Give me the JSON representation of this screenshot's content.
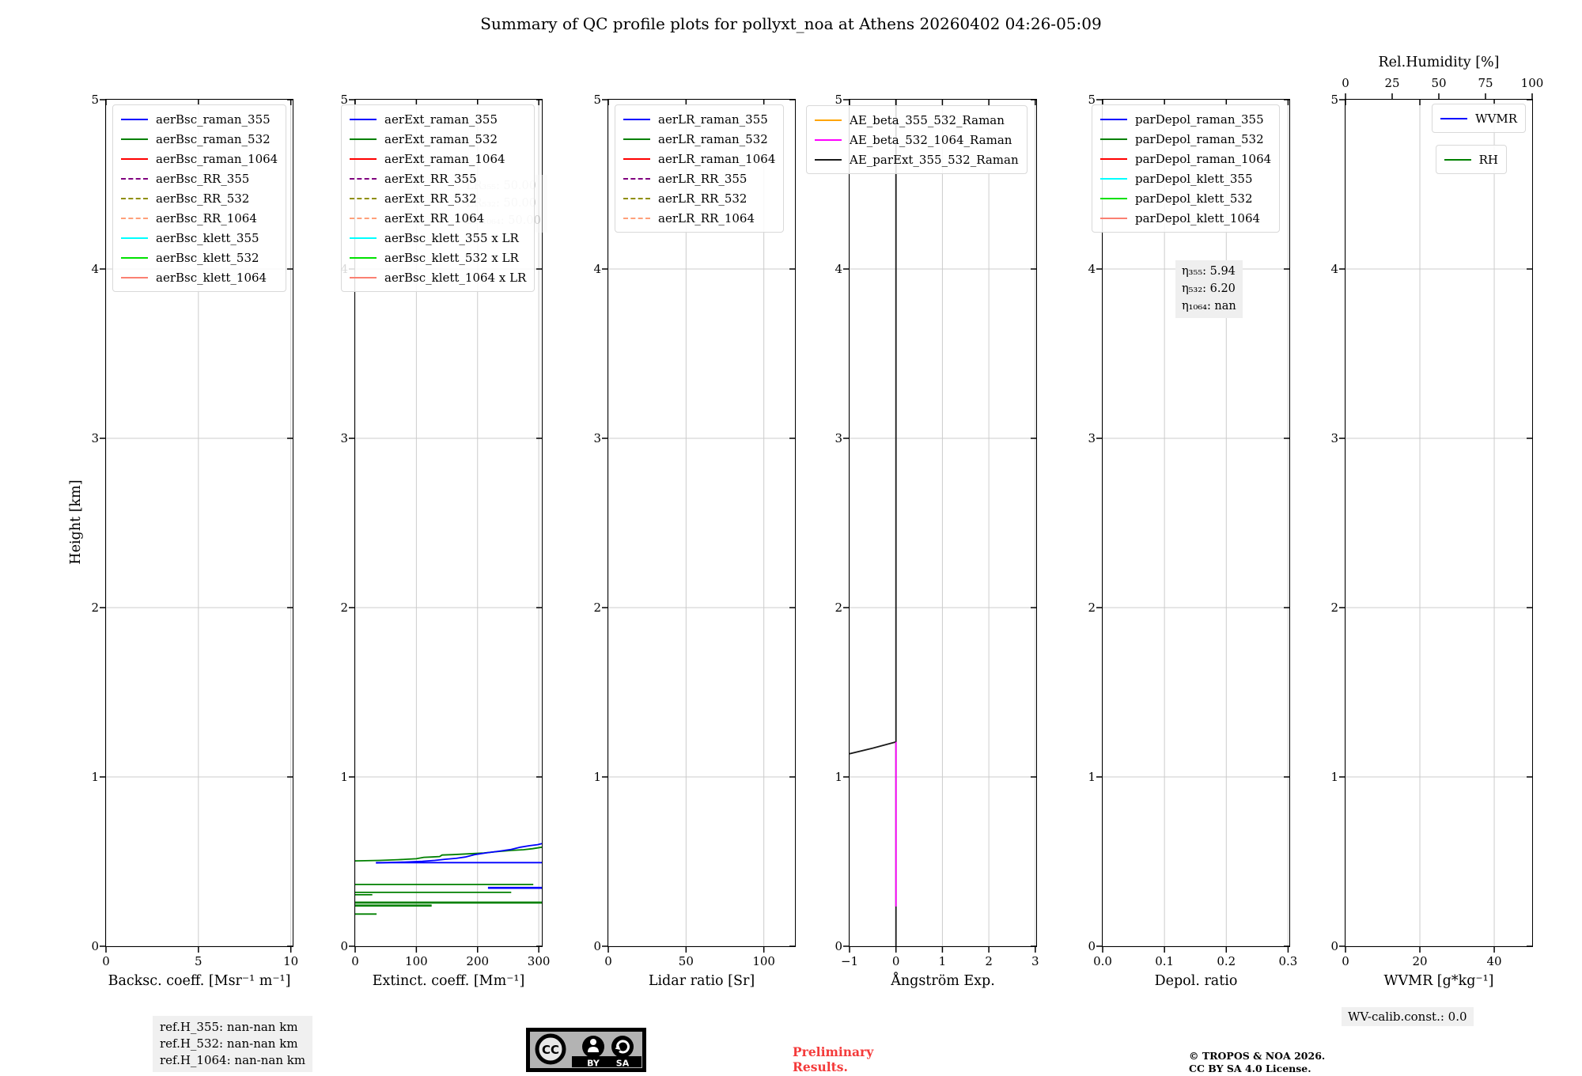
{
  "title": "Summary of QC profile plots for pollyxt_noa at Athens 20260402 04:26-05:09",
  "footer": {
    "ref_heights": [
      "ref.H_355: nan-nan km",
      "ref.H_532: nan-nan km",
      "ref.H_1064: nan-nan km"
    ],
    "preliminary": "Preliminary\nResults.",
    "license_line1": "© TROPOS & NOA 2026.",
    "license_line2": "CC BY SA 4.0 License.",
    "wv_calib": "WV-calib.const.: 0.0",
    "cc_badge": {
      "cc": "CC",
      "by": "BY",
      "sa": "SA"
    }
  },
  "colors": {
    "blue": "#0000ff",
    "green": "#008000",
    "red": "#ff0000",
    "purple": "#800080",
    "olive": "#8f8f00",
    "lightsalmon": "#ffa07a",
    "cyan": "#00ffff",
    "lime": "#00e100",
    "salmon": "#fa8072",
    "orange": "#ffa500",
    "magenta": "#ff00ff",
    "black": "#1a1a1a"
  },
  "chart_data": {
    "type": "line",
    "ylabel": "Height [km]",
    "ylim": [
      0,
      5
    ],
    "yticks": [
      "0",
      "1",
      "2",
      "3",
      "4",
      "5"
    ],
    "grid": true,
    "panels": [
      {
        "id": "backscatter",
        "xlabel": "Backsc. coeff. [Msr⁻¹ m⁻¹]",
        "xlim": [
          0,
          10.1
        ],
        "xticks": [
          {
            "v": 0,
            "l": "0"
          },
          {
            "v": 5,
            "l": "5"
          },
          {
            "v": 10,
            "l": "10"
          }
        ],
        "legends": [
          [
            {
              "label": "aerBsc_raman_355",
              "color": "blue",
              "dash": "solid"
            },
            {
              "label": "aerBsc_raman_532",
              "color": "green",
              "dash": "solid"
            },
            {
              "label": "aerBsc_raman_1064",
              "color": "red",
              "dash": "solid"
            },
            {
              "label": "aerBsc_RR_355",
              "color": "purple",
              "dash": "dashed"
            },
            {
              "label": "aerBsc_RR_532",
              "color": "olive",
              "dash": "dashed"
            },
            {
              "label": "aerBsc_RR_1064",
              "color": "lightsalmon",
              "dash": "dashed"
            },
            {
              "label": "aerBsc_klett_355",
              "color": "cyan",
              "dash": "solid"
            },
            {
              "label": "aerBsc_klett_532",
              "color": "lime",
              "dash": "solid"
            },
            {
              "label": "aerBsc_klett_1064",
              "color": "salmon",
              "dash": "solid"
            }
          ]
        ],
        "series": []
      },
      {
        "id": "extinction",
        "xlabel": "Extinct. coeff. [Mm⁻¹]",
        "xlim": [
          0,
          305
        ],
        "xticks": [
          {
            "v": 0,
            "l": "0"
          },
          {
            "v": 100,
            "l": "100"
          },
          {
            "v": 200,
            "l": "200"
          },
          {
            "v": 300,
            "l": "300"
          }
        ],
        "legends": [
          [
            {
              "label": "aerExt_raman_355",
              "color": "blue",
              "dash": "solid"
            },
            {
              "label": "aerExt_raman_532",
              "color": "green",
              "dash": "solid"
            },
            {
              "label": "aerExt_raman_1064",
              "color": "red",
              "dash": "solid"
            },
            {
              "label": "aerExt_RR_355",
              "color": "purple",
              "dash": "dashed"
            },
            {
              "label": "aerExt_RR_532",
              "color": "olive",
              "dash": "dashed"
            },
            {
              "label": "aerExt_RR_1064",
              "color": "lightsalmon",
              "dash": "dashed"
            },
            {
              "label": "aerBsc_klett_355 x LR",
              "color": "cyan",
              "dash": "solid"
            },
            {
              "label": "aerBsc_klett_532 x LR",
              "color": "lime",
              "dash": "solid"
            },
            {
              "label": "aerBsc_klett_1064 x LR",
              "color": "salmon",
              "dash": "solid"
            }
          ]
        ],
        "annotation": [
          "LR₃₅₅: 50.00",
          "LR₅₃₂: 50.00",
          "LR₁₀₆₄: 50.00"
        ],
        "series": [
          {
            "name": "aerExt_raman_532",
            "color": "green",
            "width": 1.8,
            "points": [
              [
                0,
                0.504
              ],
              [
                40,
                0.507
              ],
              [
                70,
                0.511
              ],
              [
                100,
                0.517
              ],
              [
                112,
                0.525
              ],
              [
                125,
                0.527
              ],
              [
                138,
                0.53
              ],
              [
                142,
                0.539
              ],
              [
                160,
                0.541
              ],
              [
                185,
                0.546
              ],
              [
                210,
                0.551
              ],
              [
                232,
                0.559
              ],
              [
                255,
                0.566
              ],
              [
                275,
                0.57
              ],
              [
                290,
                0.576
              ],
              [
                305,
                0.585
              ]
            ]
          },
          {
            "name": "aerExt_raman_532",
            "color": "green",
            "width": 1.8,
            "points": [
              [
                0,
                0.365
              ],
              [
                291,
                0.365
              ]
            ]
          },
          {
            "name": "aerExt_raman_532",
            "color": "green",
            "width": 1.8,
            "points": [
              [
                0,
                0.318
              ],
              [
                255,
                0.318
              ]
            ]
          },
          {
            "name": "aerExt_raman_532",
            "color": "green",
            "width": 1.8,
            "points": [
              [
                0,
                0.304
              ],
              [
                28,
                0.304
              ]
            ]
          },
          {
            "name": "aerExt_raman_532",
            "color": "green",
            "width": 2.6,
            "points": [
              [
                0,
                0.258
              ],
              [
                305,
                0.258
              ]
            ]
          },
          {
            "name": "aerExt_raman_532",
            "color": "green",
            "width": 2.6,
            "points": [
              [
                0,
                0.24
              ],
              [
                125,
                0.24
              ]
            ]
          },
          {
            "name": "aerExt_raman_532",
            "color": "green",
            "width": 1.8,
            "points": [
              [
                0,
                0.19
              ],
              [
                35,
                0.19
              ]
            ]
          },
          {
            "name": "aerExt_raman_355",
            "color": "blue",
            "width": 1.8,
            "points": [
              [
                34,
                0.494
              ],
              [
                305,
                0.494
              ]
            ]
          },
          {
            "name": "aerExt_raman_355",
            "color": "blue",
            "width": 1.8,
            "points": [
              [
                34,
                0.492
              ],
              [
                80,
                0.497
              ],
              [
                110,
                0.502
              ],
              [
                130,
                0.507
              ],
              [
                148,
                0.514
              ],
              [
                165,
                0.519
              ],
              [
                180,
                0.527
              ],
              [
                195,
                0.541
              ],
              [
                215,
                0.552
              ],
              [
                235,
                0.561
              ],
              [
                255,
                0.572
              ],
              [
                270,
                0.585
              ],
              [
                285,
                0.594
              ],
              [
                298,
                0.6
              ],
              [
                305,
                0.606
              ]
            ]
          },
          {
            "name": "aerExt_raman_355",
            "color": "blue",
            "width": 2.6,
            "points": [
              [
                217,
                0.345
              ],
              [
                305,
                0.345
              ]
            ]
          }
        ]
      },
      {
        "id": "lidar_ratio",
        "xlabel": "Lidar ratio [Sr]",
        "xlim": [
          0,
          120
        ],
        "xticks": [
          {
            "v": 0,
            "l": "0"
          },
          {
            "v": 50,
            "l": "50"
          },
          {
            "v": 100,
            "l": "100"
          }
        ],
        "legends": [
          [
            {
              "label": "aerLR_raman_355",
              "color": "blue",
              "dash": "solid"
            },
            {
              "label": "aerLR_raman_532",
              "color": "green",
              "dash": "solid"
            },
            {
              "label": "aerLR_raman_1064",
              "color": "red",
              "dash": "solid"
            },
            {
              "label": "aerLR_RR_355",
              "color": "purple",
              "dash": "dashed"
            },
            {
              "label": "aerLR_RR_532",
              "color": "olive",
              "dash": "dashed"
            },
            {
              "label": "aerLR_RR_1064",
              "color": "lightsalmon",
              "dash": "dashed"
            }
          ]
        ],
        "series": []
      },
      {
        "id": "angstrom",
        "xlabel": "Ångström Exp.",
        "xlim": [
          -1,
          3.02
        ],
        "xticks": [
          {
            "v": -1,
            "l": "−1"
          },
          {
            "v": 0,
            "l": "0"
          },
          {
            "v": 1,
            "l": "1"
          },
          {
            "v": 2,
            "l": "2"
          },
          {
            "v": 3,
            "l": "3"
          }
        ],
        "legends": [
          [
            {
              "label": "AE_beta_355_532_Raman",
              "color": "orange",
              "dash": "solid"
            },
            {
              "label": "AE_beta_532_1064_Raman",
              "color": "magenta",
              "dash": "solid"
            },
            {
              "label": "AE_parExt_355_532_Raman",
              "color": "black",
              "dash": "solid"
            }
          ]
        ],
        "series": [
          {
            "name": "AE_parExt_355_532_Raman",
            "color": "black",
            "width": 1.8,
            "points": [
              [
                0,
                0
              ],
              [
                0,
                5
              ]
            ]
          },
          {
            "name": "AE_parExt_355_532_Raman",
            "color": "black",
            "width": 1.8,
            "points": [
              [
                -1,
                1.137
              ],
              [
                -0.5,
                1.17
              ],
              [
                0,
                1.207
              ]
            ]
          },
          {
            "name": "AE_beta_532_1064_Raman",
            "color": "magenta",
            "width": 1.8,
            "points": [
              [
                0,
                0.235
              ],
              [
                0,
                1.207
              ]
            ]
          }
        ]
      },
      {
        "id": "depol",
        "xlabel": "Depol. ratio",
        "xlim": [
          0,
          0.302
        ],
        "xticks": [
          {
            "v": 0,
            "l": "0.0"
          },
          {
            "v": 0.1,
            "l": "0.1"
          },
          {
            "v": 0.2,
            "l": "0.2"
          },
          {
            "v": 0.3,
            "l": "0.3"
          }
        ],
        "legends": [
          [
            {
              "label": "parDepol_raman_355",
              "color": "blue",
              "dash": "solid"
            },
            {
              "label": "parDepol_raman_532",
              "color": "green",
              "dash": "solid"
            },
            {
              "label": "parDepol_raman_1064",
              "color": "red",
              "dash": "solid"
            },
            {
              "label": "parDepol_klett_355",
              "color": "cyan",
              "dash": "solid"
            },
            {
              "label": "parDepol_klett_532",
              "color": "lime",
              "dash": "solid"
            },
            {
              "label": "parDepol_klett_1064",
              "color": "salmon",
              "dash": "solid"
            }
          ]
        ],
        "annotation": [
          "η₃₅₅: 5.94",
          "η₅₃₂: 6.20",
          "η₁₀₆₄: nan"
        ],
        "series": []
      },
      {
        "id": "wvmr",
        "xlabel": "WVMR [g*kg⁻¹]",
        "xlim": [
          0,
          50.2
        ],
        "xticks": [
          {
            "v": 0,
            "l": "0"
          },
          {
            "v": 20,
            "l": "20"
          },
          {
            "v": 40,
            "l": "40"
          }
        ],
        "top_axis": {
          "label": "Rel.Humidity [%]",
          "xlim": [
            0,
            100
          ],
          "ticks": [
            {
              "v": 0,
              "l": "0"
            },
            {
              "v": 25,
              "l": "25"
            },
            {
              "v": 50,
              "l": "50"
            },
            {
              "v": 75,
              "l": "75"
            },
            {
              "v": 100,
              "l": "100"
            }
          ]
        },
        "legends": [
          [
            {
              "label": "WVMR",
              "color": "blue",
              "dash": "solid"
            }
          ],
          [
            {
              "label": "RH",
              "color": "green",
              "dash": "solid"
            }
          ]
        ],
        "series": []
      }
    ]
  }
}
